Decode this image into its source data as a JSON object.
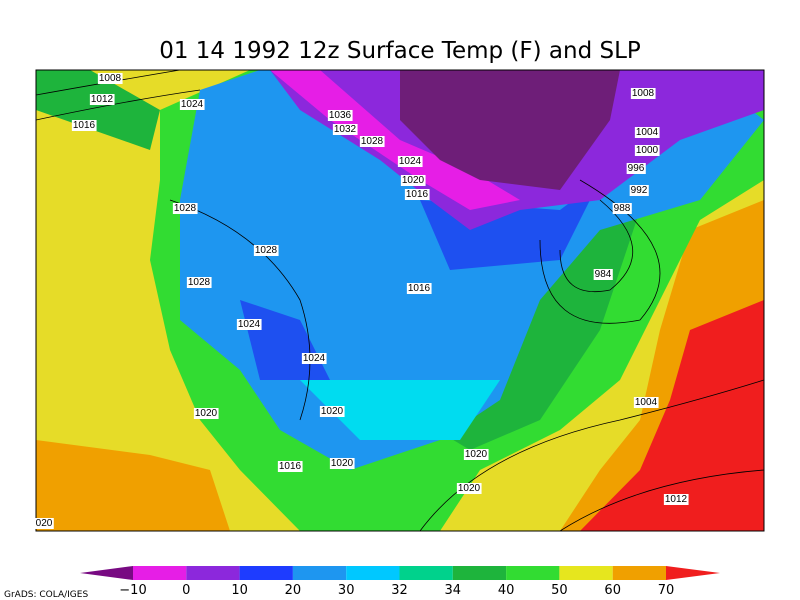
{
  "title": "01 14 1992 12z Surface Temp (F) and SLP",
  "isobar_labels": [
    "1008",
    "1012",
    "1016",
    "1024",
    "1036",
    "1032",
    "1028",
    "1024",
    "1020",
    "1016",
    "1028",
    "1028",
    "1028",
    "1016",
    "1024",
    "1024",
    "1020",
    "1020",
    "1016",
    "1020",
    "1020",
    "1020",
    "1008",
    "1004",
    "1000",
    "996",
    "992",
    "988",
    "984",
    "1004",
    "1012",
    "020"
  ],
  "colorbar": {
    "labels": [
      "−10",
      "0",
      "10",
      "20",
      "30",
      "32",
      "34",
      "40",
      "50",
      "60",
      "70"
    ],
    "colors": [
      "#780a82",
      "#e61ee6",
      "#8c28dc",
      "#1e3cff",
      "#1e96f0",
      "#00c8ff",
      "#00d28c",
      "#1eb43c",
      "#32dc32",
      "#e6e61e",
      "#f0a000",
      "#f01e1e"
    ]
  },
  "credit": "GrADS: COLA/IGES"
}
